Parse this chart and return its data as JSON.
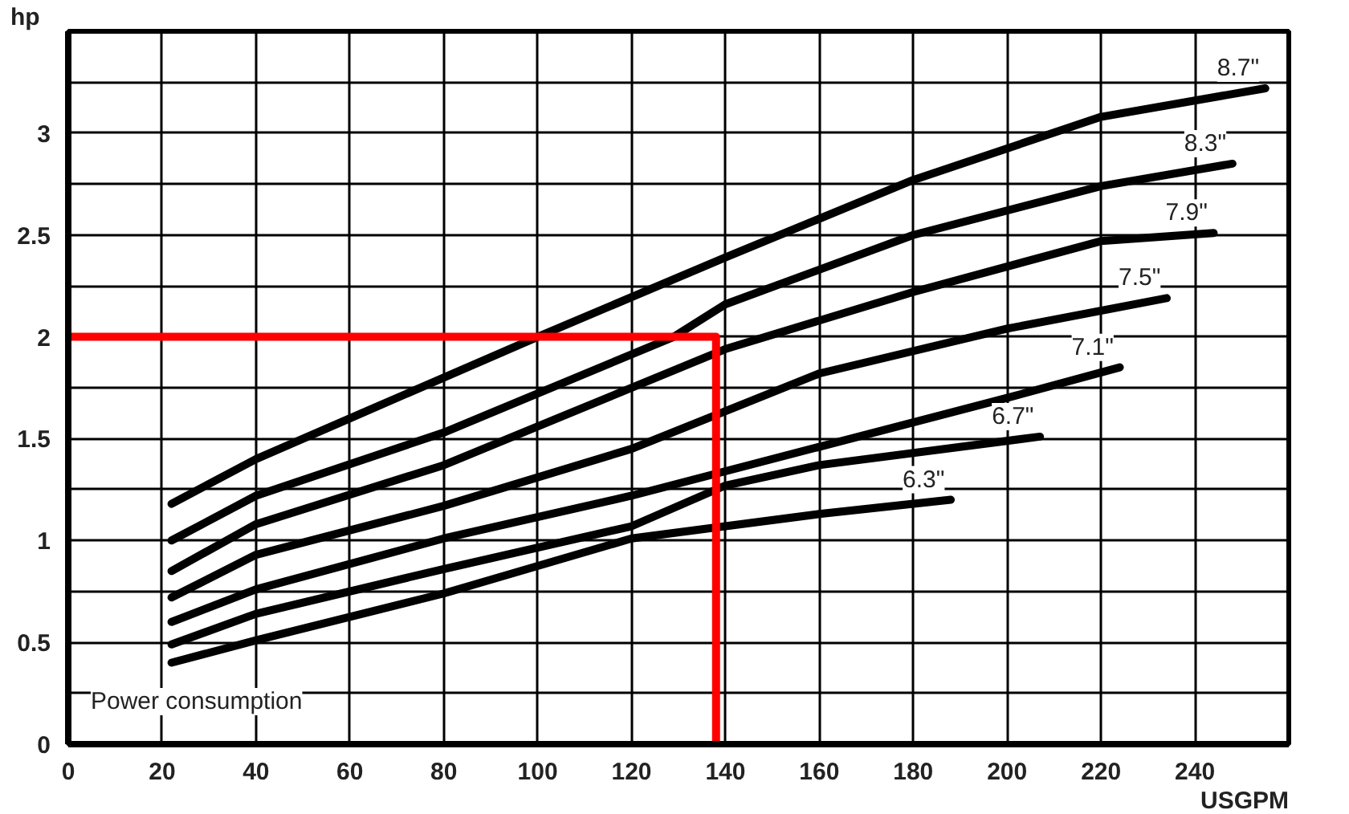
{
  "chart_data": {
    "type": "line",
    "xlabel": "USGPM",
    "ylabel": "hp",
    "xlim": [
      0,
      260
    ],
    "ylim": [
      0,
      3.5
    ],
    "xticks": [
      0,
      20,
      40,
      60,
      80,
      100,
      120,
      140,
      160,
      180,
      200,
      220,
      240
    ],
    "yticks": [
      0,
      {
        "value": 0.25,
        "label": null
      },
      0.5,
      {
        "value": 0.75,
        "label": null
      },
      1,
      {
        "value": 1.25,
        "label": null
      },
      1.5,
      {
        "value": 1.75,
        "label": null
      },
      2,
      {
        "value": 2.25,
        "label": null
      },
      2.5,
      {
        "value": 2.75,
        "label": null
      },
      3,
      {
        "value": 3.25,
        "label": null
      }
    ],
    "grid": true,
    "marker": "none",
    "line_style": "solid",
    "annotations": [
      "Power consumption"
    ],
    "series": [
      {
        "name": "8.7\"",
        "color": "#000000",
        "x": [
          22,
          40,
          60,
          100,
          140,
          180,
          220,
          255
        ],
        "values": [
          1.18,
          1.4,
          1.6,
          2.0,
          2.39,
          2.77,
          3.08,
          3.22
        ]
      },
      {
        "name": "8.3\"",
        "color": "#000000",
        "x": [
          22,
          40,
          80,
          129,
          140,
          180,
          220,
          248
        ],
        "values": [
          1.0,
          1.22,
          1.53,
          2.0,
          2.16,
          2.5,
          2.74,
          2.85
        ]
      },
      {
        "name": "7.9\"",
        "color": "#000000",
        "x": [
          22,
          40,
          80,
          140,
          180,
          220,
          244
        ],
        "values": [
          0.85,
          1.08,
          1.37,
          1.94,
          2.22,
          2.47,
          2.51
        ]
      },
      {
        "name": "7.5\"",
        "color": "#000000",
        "x": [
          22,
          40,
          80,
          120,
          160,
          200,
          234
        ],
        "values": [
          0.72,
          0.93,
          1.17,
          1.45,
          1.82,
          2.04,
          2.19
        ]
      },
      {
        "name": "7.1\"",
        "color": "#000000",
        "x": [
          22,
          40,
          80,
          120,
          160,
          200,
          224
        ],
        "values": [
          0.6,
          0.76,
          1.01,
          1.22,
          1.46,
          1.7,
          1.85
        ]
      },
      {
        "name": "6.7\"",
        "color": "#000000",
        "x": [
          22,
          40,
          80,
          120,
          140,
          160,
          207
        ],
        "values": [
          0.49,
          0.64,
          0.86,
          1.07,
          1.27,
          1.37,
          1.51
        ]
      },
      {
        "name": "6.3\"",
        "color": "#000000",
        "x": [
          22,
          40,
          80,
          120,
          140,
          160,
          188
        ],
        "values": [
          0.4,
          0.51,
          0.74,
          1.01,
          1.07,
          1.13,
          1.2
        ]
      },
      {
        "color": "#ff0000",
        "x": [
          0,
          138,
          138
        ],
        "values": [
          2,
          2,
          0
        ]
      }
    ]
  }
}
